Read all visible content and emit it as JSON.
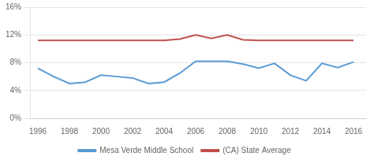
{
  "chart_data": {
    "type": "line",
    "x": [
      1996,
      1997,
      1998,
      1999,
      2000,
      2001,
      2002,
      2003,
      2004,
      2005,
      2006,
      2007,
      2008,
      2009,
      2010,
      2011,
      2012,
      2013,
      2014,
      2015,
      2016
    ],
    "series": [
      {
        "name": "Mesa Verde Middle School",
        "color": "#5b9bd5",
        "values": [
          7.2,
          6.0,
          5.0,
          5.2,
          6.2,
          6.0,
          5.8,
          5.0,
          5.2,
          6.5,
          8.2,
          8.2,
          8.2,
          7.8,
          7.2,
          7.9,
          6.2,
          5.4,
          7.9,
          7.3,
          8.1
        ]
      },
      {
        "name": "(CA) State Average",
        "color": "#c0504d",
        "values": [
          11.2,
          11.2,
          11.2,
          11.2,
          11.2,
          11.2,
          11.2,
          11.2,
          11.2,
          11.4,
          12.0,
          11.5,
          12.0,
          11.3,
          11.2,
          11.2,
          11.2,
          11.2,
          11.2,
          11.2,
          11.2
        ]
      }
    ],
    "xlim": [
      1995.5,
      2016.8
    ],
    "xticks": [
      1996,
      1998,
      2000,
      2002,
      2004,
      2006,
      2008,
      2010,
      2012,
      2014,
      2016
    ],
    "ylim": [
      0,
      16
    ],
    "yticks": [
      {
        "value": 0,
        "label": "0%"
      },
      {
        "value": 4,
        "label": "4%"
      },
      {
        "value": 8,
        "label": "8%"
      },
      {
        "value": 12,
        "label": "12%"
      },
      {
        "value": 16,
        "label": "16%"
      }
    ],
    "grid": "y",
    "legend": "bottom"
  }
}
